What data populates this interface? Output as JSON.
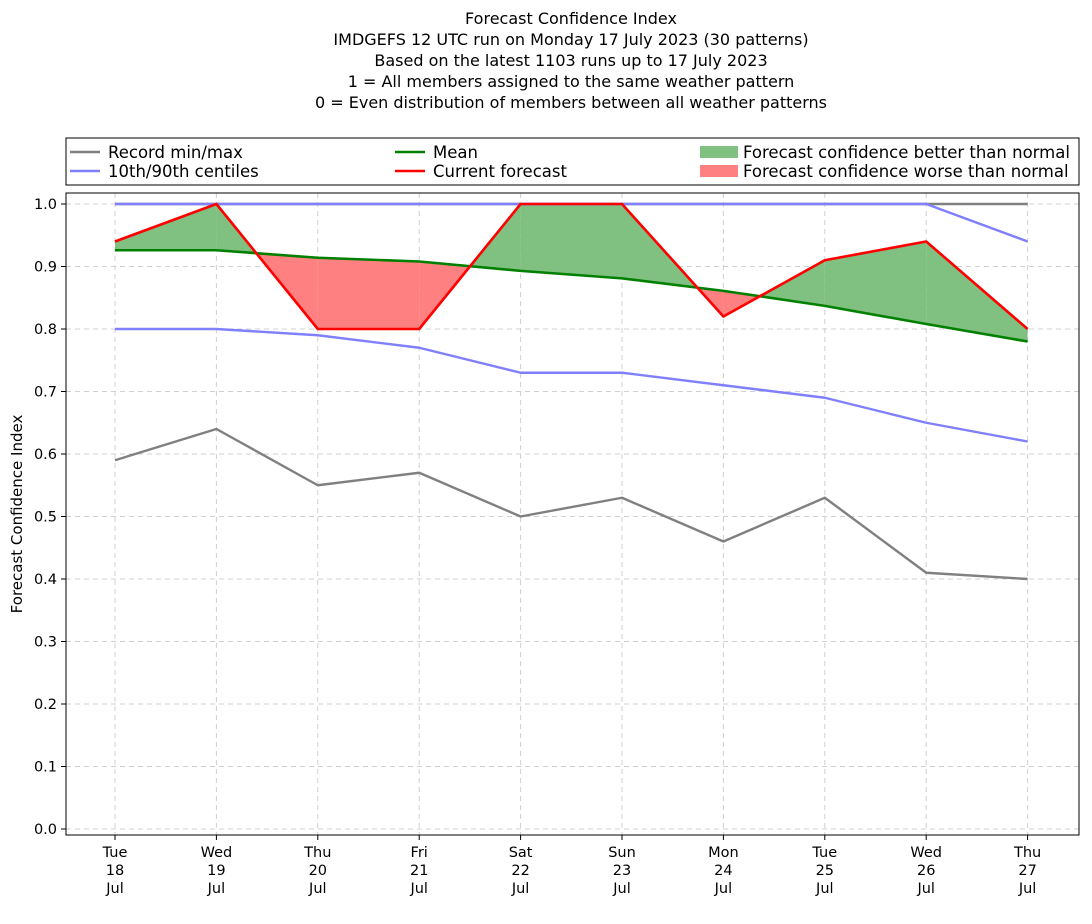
{
  "chart_data": {
    "type": "line",
    "title_lines": [
      "Forecast Confidence Index",
      "IMDGEFS 12 UTC run on Monday 17 July 2023 (30 patterns)",
      "Based on the latest 1103 runs up to 17 July 2023",
      "1 = All members assigned to the same weather pattern",
      "0 = Even distribution of members between all weather patterns"
    ],
    "ylabel": "Forecast Confidence Index",
    "xlabel": "",
    "ylim": [
      0,
      1.0
    ],
    "yticks": [
      "0.0",
      "0.1",
      "0.2",
      "0.3",
      "0.4",
      "0.5",
      "0.6",
      "0.7",
      "0.8",
      "0.9",
      "1.0"
    ],
    "x_labels": [
      [
        "Tue",
        "18",
        "Jul"
      ],
      [
        "Wed",
        "19",
        "Jul"
      ],
      [
        "Thu",
        "20",
        "Jul"
      ],
      [
        "Fri",
        "21",
        "Jul"
      ],
      [
        "Sat",
        "22",
        "Jul"
      ],
      [
        "Sun",
        "23",
        "Jul"
      ],
      [
        "Mon",
        "24",
        "Jul"
      ],
      [
        "Tue",
        "25",
        "Jul"
      ],
      [
        "Wed",
        "26",
        "Jul"
      ],
      [
        "Thu",
        "27",
        "Jul"
      ]
    ],
    "grid": true,
    "legend_placement": "top",
    "series": [
      {
        "name": "Record min/max",
        "role": "record_max",
        "color": "#808080",
        "values": [
          1.0,
          1.0,
          1.0,
          1.0,
          1.0,
          1.0,
          1.0,
          1.0,
          1.0,
          1.0
        ]
      },
      {
        "name": "Record min/max",
        "role": "record_min",
        "color": "#808080",
        "values": [
          0.59,
          0.64,
          0.55,
          0.57,
          0.5,
          0.53,
          0.46,
          0.53,
          0.41,
          0.4
        ]
      },
      {
        "name": "10th/90th centiles",
        "role": "p90",
        "color": "#8080ff",
        "values": [
          1.0,
          1.0,
          1.0,
          1.0,
          1.0,
          1.0,
          1.0,
          1.0,
          1.0,
          0.94
        ]
      },
      {
        "name": "10th/90th centiles",
        "role": "p10",
        "color": "#8080ff",
        "values": [
          0.8,
          0.8,
          0.79,
          0.77,
          0.73,
          0.73,
          0.71,
          0.69,
          0.65,
          0.62
        ]
      },
      {
        "name": "Mean",
        "role": "mean",
        "color": "#008000",
        "values": [
          0.926,
          0.926,
          0.914,
          0.908,
          0.893,
          0.881,
          0.861,
          0.837,
          0.808,
          0.78
        ]
      },
      {
        "name": "Current forecast",
        "role": "current",
        "color": "#ff0000",
        "values": [
          0.94,
          1.0,
          0.8,
          0.8,
          1.0,
          1.0,
          0.82,
          0.91,
          0.94,
          0.8
        ]
      }
    ],
    "fills": [
      {
        "name": "Forecast confidence better than normal",
        "color": "#80c080"
      },
      {
        "name": "Forecast confidence worse than normal",
        "color": "#ff8080"
      }
    ],
    "legend": [
      {
        "label": "Record min/max",
        "kind": "line",
        "color": "#808080"
      },
      {
        "label": "10th/90th centiles",
        "kind": "line",
        "color": "#8080ff"
      },
      {
        "label": "Mean",
        "kind": "line",
        "color": "#008000"
      },
      {
        "label": "Current forecast",
        "kind": "line",
        "color": "#ff0000"
      },
      {
        "label": "Forecast confidence better than normal",
        "kind": "patch",
        "color": "#80c080"
      },
      {
        "label": "Forecast confidence worse than normal",
        "kind": "patch",
        "color": "#ff8080"
      }
    ]
  }
}
